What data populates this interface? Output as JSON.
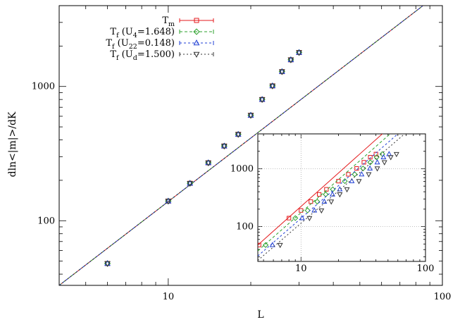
{
  "chart_data": [
    {
      "type": "line",
      "xlabel": "L",
      "ylabel": "dln<|m|>/dK",
      "xscale": "log",
      "yscale": "log",
      "xlim": [
        4,
        100
      ],
      "ylim": [
        33,
        4000
      ],
      "xticks": [
        {
          "value": 10,
          "label": "10"
        },
        {
          "value": 100,
          "label": "100"
        }
      ],
      "yticks": [
        {
          "value": 100,
          "label": "100"
        },
        {
          "value": 1000,
          "label": "1000"
        }
      ],
      "grid": false,
      "legend_position": "top-left",
      "x": [
        6,
        10,
        12,
        14,
        16,
        18,
        20,
        22,
        24,
        26,
        28,
        30,
        32
      ],
      "series": [
        {
          "name": "T",
          "sub": "m",
          "color": "#e41a1c",
          "marker": "square",
          "dash": "",
          "values": [
            48,
            140,
            190,
            270,
            360,
            440,
            610,
            800,
            1010,
            1290,
            1580,
            1790,
            null
          ],
          "fit": [
            [
              4,
              33
            ],
            [
              85,
              4000
            ]
          ]
        },
        {
          "name": "T",
          "sub": "f",
          "paren": " (U",
          "psub": "4",
          "rest": "=1.648)",
          "color": "#2ca02c",
          "marker": "diamond",
          "dash": "4 3",
          "values": [
            48,
            140,
            190,
            270,
            360,
            440,
            610,
            800,
            1010,
            1290,
            1580,
            1790,
            null
          ],
          "fit": [
            [
              4,
              33
            ],
            [
              85,
              4000
            ]
          ]
        },
        {
          "name": "T",
          "sub": "f",
          "paren": " (U",
          "psub": "22",
          "rest": "=0.148)",
          "color": "#1f3fd4",
          "marker": "triangle",
          "dash": "3 3",
          "values": [
            48,
            140,
            190,
            270,
            360,
            440,
            610,
            800,
            1010,
            1290,
            1580,
            1790,
            null
          ],
          "fit": [
            [
              4,
              33
            ],
            [
              85,
              4000
            ]
          ]
        },
        {
          "name": "T",
          "sub": "f",
          "paren": " (U",
          "psub": "d",
          "rest": "=1.500)",
          "color": "#333333",
          "marker": "triangle-down",
          "dash": "2 3",
          "values": [
            48,
            140,
            190,
            270,
            360,
            440,
            610,
            800,
            1010,
            1290,
            1580,
            1790,
            null
          ],
          "fit": [
            [
              4,
              33
            ],
            [
              85,
              4000
            ]
          ]
        }
      ]
    },
    {
      "type": "line",
      "inset": true,
      "xscale": "log",
      "yscale": "log",
      "xlim": [
        4.5,
        100
      ],
      "ylim": [
        25,
        4000
      ],
      "xticks": [
        {
          "value": 10,
          "label": "10"
        },
        {
          "value": 100,
          "label": "100"
        }
      ],
      "yticks": [
        {
          "value": 100,
          "label": "100"
        },
        {
          "value": 1000,
          "label": "1000"
        }
      ],
      "grid": true,
      "x": [
        4.6,
        8,
        10,
        12,
        14,
        16,
        20,
        24,
        28,
        32,
        36,
        40,
        44
      ],
      "series": [
        {
          "name": "T_m",
          "color": "#e41a1c",
          "marker": "square",
          "dash": "",
          "x": [
            4.6,
            8,
            10,
            12,
            14,
            16,
            20,
            24,
            28,
            32,
            36,
            40
          ],
          "values": [
            48,
            140,
            190,
            270,
            360,
            440,
            610,
            800,
            1010,
            1290,
            1580,
            1790
          ],
          "fit": [
            [
              4.5,
              48
            ],
            [
              45,
              4000
            ]
          ]
        },
        {
          "name": "T_f (U4)",
          "color": "#2ca02c",
          "marker": "diamond",
          "dash": "4 3",
          "x": [
            5.2,
            9,
            11.3,
            13.5,
            15.8,
            18,
            22.5,
            27,
            31.5,
            36,
            40.5,
            45
          ],
          "values": [
            48,
            140,
            190,
            270,
            360,
            440,
            610,
            800,
            1010,
            1290,
            1580,
            1790
          ],
          "fit": [
            [
              4.5,
              38
            ],
            [
              52,
              4000
            ]
          ]
        },
        {
          "name": "T_f (U22)",
          "color": "#1f3fd4",
          "marker": "triangle",
          "dash": "3 3",
          "x": [
            5.9,
            10.2,
            12.8,
            15.4,
            17.9,
            20.5,
            25.6,
            30.7,
            35.8,
            41,
            46,
            51
          ],
          "values": [
            48,
            140,
            190,
            270,
            360,
            440,
            610,
            800,
            1010,
            1290,
            1580,
            1790
          ],
          "fit": [
            [
              4.5,
              31
            ],
            [
              60,
              4000
            ]
          ]
        },
        {
          "name": "T_f (Ud)",
          "color": "#333333",
          "marker": "triangle-down",
          "dash": "2 3",
          "x": [
            6.8,
            11.7,
            14.6,
            17.5,
            20.5,
            23.4,
            29.2,
            35,
            41,
            46.8,
            52.6,
            58.5
          ],
          "values": [
            48,
            140,
            190,
            270,
            360,
            440,
            610,
            800,
            1010,
            1290,
            1580,
            1790
          ],
          "fit": [
            [
              4.5,
              26
            ],
            [
              68,
              4000
            ]
          ]
        }
      ]
    }
  ]
}
